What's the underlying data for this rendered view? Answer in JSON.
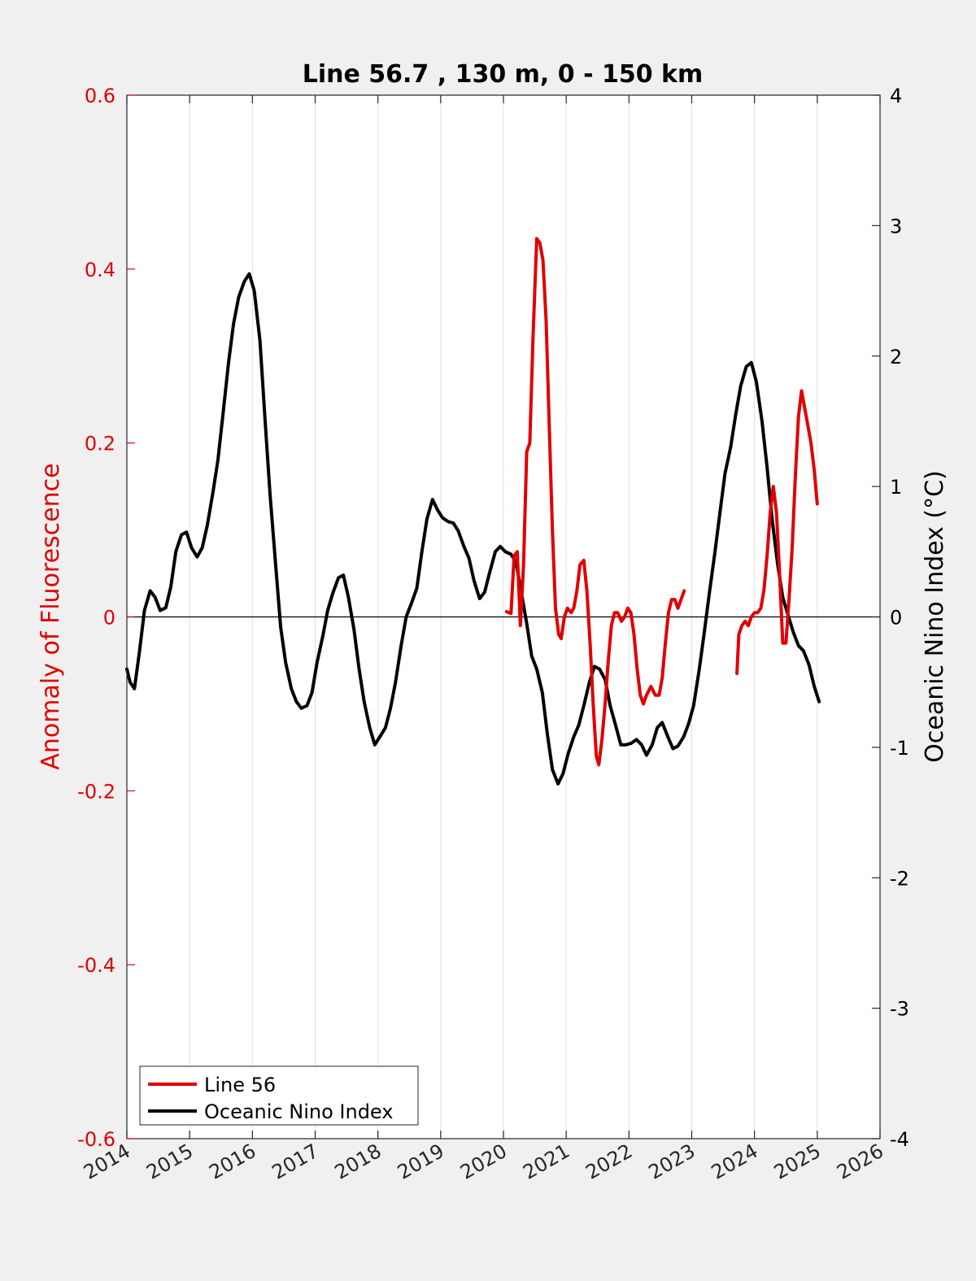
{
  "chart_data": {
    "type": "line",
    "title": "Line 56.7 , 130 m, 0 - 150 km",
    "ylabel_left": "Anomaly of Fluorescence",
    "ylabel_right": "Oceanic Nino Index (°C)",
    "xlim": [
      2014,
      2026
    ],
    "ylim_left": [
      -0.6,
      0.6
    ],
    "ylim_right": [
      -4,
      4
    ],
    "x_ticks": [
      "2014",
      "2015",
      "2016",
      "2017",
      "2018",
      "2019",
      "2020",
      "2021",
      "2022",
      "2023",
      "2024",
      "2025",
      "2026"
    ],
    "y_ticks_left": [
      "-0.6",
      "-0.4",
      "-0.2",
      "0",
      "0.2",
      "0.4",
      "0.6"
    ],
    "y_ticks_right": [
      "-4",
      "-3",
      "-2",
      "-1",
      "0",
      "1",
      "2",
      "3",
      "4"
    ],
    "grid": "vertical",
    "legend_position": "bottom-left",
    "colors": {
      "line56": "#e00000",
      "oni": "#000000",
      "left_axis": "#e00000"
    },
    "series": [
      {
        "name": "Line 56",
        "axis": "left",
        "color": "#e00000",
        "segments": [
          [
            [
              2020.05,
              0.006
            ],
            [
              2020.12,
              0.004
            ],
            [
              2020.17,
              0.07
            ],
            [
              2020.22,
              0.075
            ],
            [
              2020.27,
              -0.01
            ],
            [
              2020.32,
              0.06
            ],
            [
              2020.37,
              0.19
            ],
            [
              2020.42,
              0.2
            ],
            [
              2020.47,
              0.32
            ],
            [
              2020.53,
              0.435
            ],
            [
              2020.58,
              0.43
            ],
            [
              2020.63,
              0.41
            ],
            [
              2020.68,
              0.34
            ],
            [
              2020.73,
              0.22
            ],
            [
              2020.78,
              0.1
            ],
            [
              2020.83,
              0.01
            ],
            [
              2020.88,
              -0.02
            ],
            [
              2020.92,
              -0.025
            ],
            [
              2020.97,
              0.0
            ],
            [
              2021.02,
              0.01
            ],
            [
              2021.08,
              0.005
            ],
            [
              2021.12,
              0.01
            ],
            [
              2021.17,
              0.03
            ],
            [
              2021.22,
              0.06
            ],
            [
              2021.28,
              0.065
            ],
            [
              2021.33,
              0.03
            ],
            [
              2021.38,
              -0.03
            ],
            [
              2021.43,
              -0.1
            ],
            [
              2021.48,
              -0.16
            ],
            [
              2021.52,
              -0.17
            ],
            [
              2021.57,
              -0.14
            ],
            [
              2021.62,
              -0.1
            ],
            [
              2021.67,
              -0.05
            ],
            [
              2021.72,
              -0.01
            ],
            [
              2021.77,
              0.005
            ],
            [
              2021.82,
              0.005
            ],
            [
              2021.88,
              -0.005
            ],
            [
              2021.93,
              0.0
            ],
            [
              2021.98,
              0.01
            ],
            [
              2022.03,
              0.005
            ],
            [
              2022.08,
              -0.02
            ],
            [
              2022.13,
              -0.06
            ],
            [
              2022.18,
              -0.09
            ],
            [
              2022.23,
              -0.1
            ],
            [
              2022.28,
              -0.09
            ],
            [
              2022.35,
              -0.08
            ],
            [
              2022.42,
              -0.09
            ],
            [
              2022.48,
              -0.09
            ],
            [
              2022.53,
              -0.07
            ],
            [
              2022.58,
              -0.03
            ],
            [
              2022.63,
              0.005
            ],
            [
              2022.68,
              0.02
            ],
            [
              2022.73,
              0.02
            ],
            [
              2022.78,
              0.01
            ],
            [
              2022.83,
              0.02
            ],
            [
              2022.88,
              0.03
            ]
          ],
          [
            [
              2023.72,
              -0.065
            ],
            [
              2023.75,
              -0.02
            ],
            [
              2023.8,
              -0.01
            ],
            [
              2023.85,
              -0.005
            ],
            [
              2023.9,
              -0.01
            ],
            [
              2023.95,
              0.0
            ],
            [
              2024.0,
              0.005
            ],
            [
              2024.05,
              0.005
            ],
            [
              2024.1,
              0.01
            ],
            [
              2024.15,
              0.03
            ],
            [
              2024.2,
              0.07
            ],
            [
              2024.25,
              0.12
            ],
            [
              2024.3,
              0.15
            ],
            [
              2024.35,
              0.12
            ],
            [
              2024.4,
              0.05
            ],
            [
              2024.45,
              -0.03
            ],
            [
              2024.5,
              -0.03
            ],
            [
              2024.55,
              0.02
            ],
            [
              2024.6,
              0.08
            ],
            [
              2024.65,
              0.16
            ],
            [
              2024.7,
              0.23
            ],
            [
              2024.75,
              0.26
            ],
            [
              2024.8,
              0.24
            ],
            [
              2024.85,
              0.22
            ],
            [
              2024.9,
              0.2
            ],
            [
              2024.95,
              0.17
            ],
            [
              2025.0,
              0.13
            ]
          ]
        ]
      },
      {
        "name": "Oceanic Nino Index",
        "axis": "right",
        "color": "#000000",
        "segments": [
          [
            [
              2014.0,
              -0.4
            ],
            [
              2014.05,
              -0.5
            ],
            [
              2014.12,
              -0.55
            ],
            [
              2014.2,
              -0.27
            ],
            [
              2014.28,
              0.05
            ],
            [
              2014.37,
              0.2
            ],
            [
              2014.45,
              0.15
            ],
            [
              2014.53,
              0.05
            ],
            [
              2014.62,
              0.07
            ],
            [
              2014.7,
              0.23
            ],
            [
              2014.78,
              0.5
            ],
            [
              2014.87,
              0.63
            ],
            [
              2014.95,
              0.65
            ],
            [
              2015.03,
              0.53
            ],
            [
              2015.12,
              0.46
            ],
            [
              2015.2,
              0.53
            ],
            [
              2015.28,
              0.7
            ],
            [
              2015.37,
              0.95
            ],
            [
              2015.45,
              1.2
            ],
            [
              2015.53,
              1.55
            ],
            [
              2015.62,
              1.95
            ],
            [
              2015.7,
              2.25
            ],
            [
              2015.78,
              2.45
            ],
            [
              2015.87,
              2.57
            ],
            [
              2015.95,
              2.63
            ],
            [
              2016.03,
              2.5
            ],
            [
              2016.12,
              2.12
            ],
            [
              2016.2,
              1.52
            ],
            [
              2016.28,
              0.95
            ],
            [
              2016.37,
              0.4
            ],
            [
              2016.45,
              -0.08
            ],
            [
              2016.53,
              -0.35
            ],
            [
              2016.62,
              -0.55
            ],
            [
              2016.7,
              -0.65
            ],
            [
              2016.78,
              -0.7
            ],
            [
              2016.87,
              -0.68
            ],
            [
              2016.95,
              -0.58
            ],
            [
              2017.03,
              -0.35
            ],
            [
              2017.12,
              -0.15
            ],
            [
              2017.2,
              0.05
            ],
            [
              2017.28,
              0.18
            ],
            [
              2017.37,
              0.3
            ],
            [
              2017.45,
              0.32
            ],
            [
              2017.53,
              0.15
            ],
            [
              2017.62,
              -0.1
            ],
            [
              2017.7,
              -0.4
            ],
            [
              2017.78,
              -0.65
            ],
            [
              2017.87,
              -0.85
            ],
            [
              2017.95,
              -0.98
            ],
            [
              2018.03,
              -0.92
            ],
            [
              2018.12,
              -0.85
            ],
            [
              2018.2,
              -0.7
            ],
            [
              2018.28,
              -0.5
            ],
            [
              2018.37,
              -0.22
            ],
            [
              2018.45,
              0.0
            ],
            [
              2018.53,
              0.1
            ],
            [
              2018.62,
              0.22
            ],
            [
              2018.7,
              0.5
            ],
            [
              2018.78,
              0.75
            ],
            [
              2018.87,
              0.9
            ],
            [
              2018.95,
              0.82
            ],
            [
              2019.03,
              0.76
            ],
            [
              2019.12,
              0.73
            ],
            [
              2019.2,
              0.72
            ],
            [
              2019.28,
              0.66
            ],
            [
              2019.37,
              0.54
            ],
            [
              2019.45,
              0.45
            ],
            [
              2019.53,
              0.28
            ],
            [
              2019.62,
              0.14
            ],
            [
              2019.7,
              0.19
            ],
            [
              2019.78,
              0.34
            ],
            [
              2019.87,
              0.5
            ],
            [
              2019.95,
              0.54
            ],
            [
              2020.03,
              0.5
            ],
            [
              2020.12,
              0.48
            ],
            [
              2020.2,
              0.42
            ],
            [
              2020.28,
              0.2
            ],
            [
              2020.37,
              -0.05
            ],
            [
              2020.45,
              -0.3
            ],
            [
              2020.53,
              -0.4
            ],
            [
              2020.62,
              -0.58
            ],
            [
              2020.7,
              -0.9
            ],
            [
              2020.78,
              -1.17
            ],
            [
              2020.87,
              -1.28
            ],
            [
              2020.95,
              -1.2
            ],
            [
              2021.03,
              -1.05
            ],
            [
              2021.12,
              -0.92
            ],
            [
              2021.2,
              -0.83
            ],
            [
              2021.28,
              -0.68
            ],
            [
              2021.37,
              -0.5
            ],
            [
              2021.45,
              -0.38
            ],
            [
              2021.53,
              -0.4
            ],
            [
              2021.62,
              -0.48
            ],
            [
              2021.7,
              -0.68
            ],
            [
              2021.78,
              -0.82
            ],
            [
              2021.87,
              -0.98
            ],
            [
              2021.95,
              -0.98
            ],
            [
              2022.03,
              -0.97
            ],
            [
              2022.12,
              -0.94
            ],
            [
              2022.2,
              -0.98
            ],
            [
              2022.28,
              -1.06
            ],
            [
              2022.37,
              -0.98
            ],
            [
              2022.45,
              -0.85
            ],
            [
              2022.53,
              -0.81
            ],
            [
              2022.62,
              -0.92
            ],
            [
              2022.7,
              -1.01
            ],
            [
              2022.78,
              -0.99
            ],
            [
              2022.87,
              -0.92
            ],
            [
              2022.95,
              -0.82
            ],
            [
              2023.03,
              -0.68
            ],
            [
              2023.12,
              -0.4
            ],
            [
              2023.2,
              -0.12
            ],
            [
              2023.28,
              0.18
            ],
            [
              2023.37,
              0.5
            ],
            [
              2023.45,
              0.8
            ],
            [
              2023.53,
              1.1
            ],
            [
              2023.62,
              1.3
            ],
            [
              2023.7,
              1.55
            ],
            [
              2023.78,
              1.77
            ],
            [
              2023.87,
              1.92
            ],
            [
              2023.95,
              1.95
            ],
            [
              2024.03,
              1.8
            ],
            [
              2024.12,
              1.5
            ],
            [
              2024.2,
              1.15
            ],
            [
              2024.28,
              0.75
            ],
            [
              2024.37,
              0.4
            ],
            [
              2024.45,
              0.15
            ],
            [
              2024.53,
              0.02
            ],
            [
              2024.62,
              -0.12
            ],
            [
              2024.7,
              -0.22
            ],
            [
              2024.78,
              -0.26
            ],
            [
              2024.87,
              -0.37
            ],
            [
              2024.95,
              -0.53
            ],
            [
              2025.03,
              -0.65
            ]
          ]
        ]
      }
    ]
  },
  "legend": {
    "items": [
      {
        "label": "Line 56",
        "color": "#e00000"
      },
      {
        "label": "Oceanic Nino Index",
        "color": "#000000"
      }
    ]
  }
}
